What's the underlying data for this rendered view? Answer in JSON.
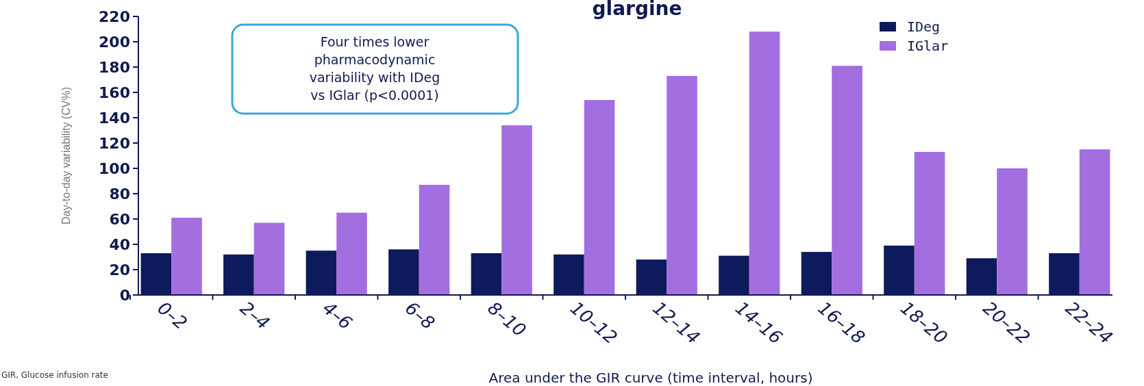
{
  "chart_data": {
    "type": "bar",
    "title": "glargine",
    "xlabel": "Area under the GIR curve (time interval, hours)",
    "ylabel": "Day-to-day variability (CV%)",
    "categories": [
      "0–2",
      "2–4",
      "4–6",
      "6–8",
      "8–10",
      "10–12",
      "12–14",
      "14–16",
      "16–18",
      "18–20",
      "20–22",
      "22–24"
    ],
    "series": [
      {
        "name": "IDeg",
        "color": "#0d1a5c",
        "values": [
          33,
          32,
          35,
          36,
          33,
          32,
          28,
          31,
          34,
          39,
          29,
          33
        ]
      },
      {
        "name": "IGlar",
        "color": "#a36ee0",
        "values": [
          61,
          57,
          65,
          87,
          134,
          154,
          173,
          208,
          181,
          113,
          100,
          115
        ]
      }
    ],
    "ylim": [
      0,
      220
    ],
    "yticks": [
      0,
      20,
      40,
      60,
      80,
      100,
      120,
      140,
      160,
      180,
      200,
      220
    ],
    "grid": false,
    "legend": "top right",
    "annotations": [
      "Four times lower pharmacodynamic variability with IDeg vs IGlar (p<0.0001)",
      "GIR, Glucose infusion rate"
    ]
  }
}
